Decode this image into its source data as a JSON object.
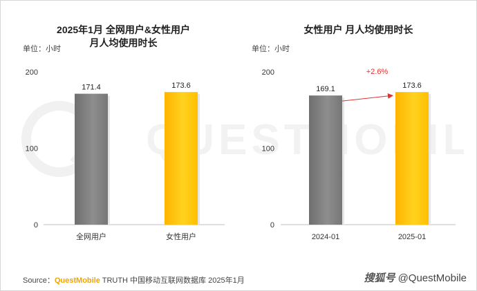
{
  "watermark": {
    "text": "QUESTMOBILE"
  },
  "charts": [
    {
      "id": "left",
      "title_line1": "2025年1月 全网用户&女性用户",
      "title_line2": "月人均使用时长",
      "unit": "单位：小时"
    },
    {
      "id": "right",
      "title_line1": "女性用户 月人均使用时长",
      "title_line2": "",
      "unit": "单位：小时"
    }
  ],
  "chart_data": [
    {
      "type": "bar",
      "title": "2025年1月 全网用户&女性用户 月人均使用时长",
      "ylabel": "单位：小时",
      "categories": [
        "全网用户",
        "女性用户"
      ],
      "values": [
        171.4,
        173.6
      ],
      "value_labels": [
        "171.4",
        "173.6"
      ],
      "colors": [
        "#808080",
        "#ffc000"
      ],
      "yticks": [
        "0",
        "100",
        "200"
      ],
      "ylim": [
        0,
        200
      ],
      "grid": false
    },
    {
      "type": "bar",
      "title": "女性用户 月人均使用时长",
      "ylabel": "单位：小时",
      "categories": [
        "2024-01",
        "2025-01"
      ],
      "values": [
        169.1,
        173.6
      ],
      "value_labels": [
        "169.1",
        "173.6"
      ],
      "colors": [
        "#808080",
        "#ffc000"
      ],
      "yticks": [
        "0",
        "100",
        "200"
      ],
      "ylim": [
        0,
        200
      ],
      "grid": false,
      "annotation": {
        "text": "+2.6%",
        "color": "#e0322f"
      }
    }
  ],
  "footer": {
    "source_prefix": "Source：",
    "source_brand": "QuestMobile",
    "source_rest": " TRUTH 中国移动互联网数据库 2025年1月",
    "platform": "搜狐号",
    "handle": "@QuestMobile"
  }
}
